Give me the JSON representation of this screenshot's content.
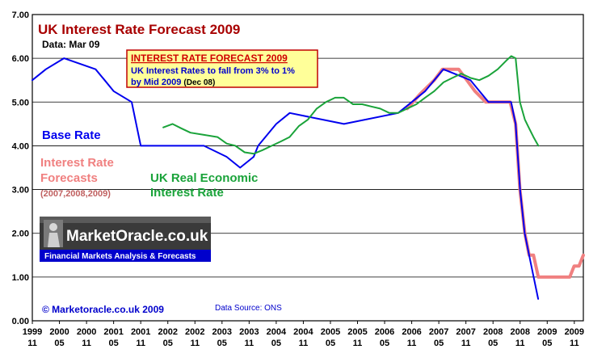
{
  "colors": {
    "title": "#a80000",
    "base_rate": "#0000ee",
    "forecast": "#f08080",
    "real_rate": "#1aa33a",
    "forecast_box_border": "#c00000",
    "forecast_box_bg": "#ffff99",
    "forecast_box_title": "#d00000",
    "forecast_box_text": "#0000cc",
    "brand_bar": "#0000cc"
  },
  "chart_data": {
    "type": "line",
    "title": "UK Interest Rate Forecast 2009",
    "subtitle": "Data: Mar 09",
    "ylim": [
      0,
      7
    ],
    "y_ticks": [
      "0.00",
      "1.00",
      "2.00",
      "3.00",
      "4.00",
      "5.00",
      "6.00",
      "7.00"
    ],
    "grid": "horizontal",
    "x_range": [
      1999.833,
      2010.0
    ],
    "x_ticks_years": [
      "1999",
      "2000",
      "2000",
      "2001",
      "2001",
      "2002",
      "2002",
      "2003",
      "2003",
      "2004",
      "2004",
      "2005",
      "2005",
      "2006",
      "2006",
      "2007",
      "2007",
      "2008",
      "2008",
      "2009",
      "2009"
    ],
    "x_ticks_months": [
      "11",
      "05",
      "11",
      "05",
      "11",
      "05",
      "11",
      "05",
      "11",
      "05",
      "11",
      "05",
      "11",
      "05",
      "11",
      "05",
      "11",
      "05",
      "11",
      "05",
      "11"
    ],
    "series": [
      {
        "name": "Base Rate",
        "label": "Base Rate",
        "x": [
          1999.833,
          2000.083,
          2000.417,
          2001.0,
          2001.167,
          2001.333,
          2001.667,
          2001.75,
          2001.833,
          2003.0,
          2003.417,
          2003.667,
          2003.917,
          2004.0,
          2004.167,
          2004.333,
          2004.583,
          2005.583,
          2006.583,
          2006.833,
          2007.083,
          2007.417,
          2007.917,
          2008.083,
          2008.25,
          2008.333,
          2008.417,
          2008.667,
          2008.75,
          2008.833,
          2008.917,
          2009.0,
          2009.083,
          2009.167
        ],
        "y": [
          5.5,
          5.75,
          6.0,
          5.75,
          5.5,
          5.25,
          5.0,
          4.5,
          4.0,
          4.0,
          3.75,
          3.5,
          3.75,
          4.0,
          4.25,
          4.5,
          4.75,
          4.5,
          4.75,
          5.0,
          5.25,
          5.75,
          5.5,
          5.25,
          5.0,
          5.0,
          5.0,
          5.0,
          4.5,
          3.0,
          2.0,
          1.5,
          1.0,
          0.5
        ]
      },
      {
        "name": "Interest Rate Forecasts",
        "label": "Interest Rate Forecasts",
        "label_note": "(2007,2008,2009)",
        "x": [
          2006.75,
          2007.0,
          2007.25,
          2007.4,
          2007.55,
          2007.7,
          2007.85,
          2008.0,
          2008.2,
          2008.35,
          2008.55,
          2008.65,
          2008.75,
          2008.83,
          2008.92,
          2009.0,
          2009.08,
          2009.17,
          2009.25,
          2009.5,
          2009.75,
          2009.83,
          2009.92,
          2010.0
        ],
        "y": [
          4.85,
          5.2,
          5.5,
          5.75,
          5.75,
          5.75,
          5.5,
          5.25,
          5.0,
          5.0,
          5.0,
          5.0,
          4.5,
          3.0,
          2.0,
          1.5,
          1.5,
          1.0,
          1.0,
          1.0,
          1.0,
          1.25,
          1.25,
          1.5
        ]
      },
      {
        "name": "UK Real Economic Interest Rate",
        "label": "UK Real Economic Interest Rate",
        "x": [
          2002.25,
          2002.42,
          2002.58,
          2002.75,
          2003.0,
          2003.25,
          2003.42,
          2003.58,
          2003.75,
          2003.92,
          2004.08,
          2004.25,
          2004.42,
          2004.58,
          2004.75,
          2004.92,
          2005.08,
          2005.25,
          2005.42,
          2005.58,
          2005.75,
          2005.92,
          2006.08,
          2006.25,
          2006.42,
          2006.58,
          2006.75,
          2006.92,
          2007.08,
          2007.25,
          2007.42,
          2007.58,
          2007.75,
          2007.92,
          2008.08,
          2008.25,
          2008.42,
          2008.58,
          2008.67,
          2008.75,
          2008.83,
          2008.92,
          2009.0,
          2009.08,
          2009.17
        ],
        "y": [
          4.42,
          4.5,
          4.4,
          4.3,
          4.25,
          4.2,
          4.05,
          4.0,
          3.85,
          3.82,
          3.9,
          4.0,
          4.1,
          4.2,
          4.45,
          4.6,
          4.85,
          5.0,
          5.1,
          5.1,
          4.95,
          4.95,
          4.9,
          4.85,
          4.75,
          4.75,
          4.85,
          4.95,
          5.1,
          5.25,
          5.45,
          5.55,
          5.65,
          5.55,
          5.5,
          5.6,
          5.75,
          5.95,
          6.05,
          6.0,
          5.0,
          4.6,
          4.4,
          4.2,
          4.0
        ]
      }
    ]
  },
  "forecast_box": {
    "title": "INTEREST RATE FORECAST 2009",
    "line1": "UK Interest Rates to fall from 3% to 1%",
    "line2": "by Mid 2009",
    "line2_suffix": "(Dec 08)"
  },
  "brand": {
    "name": "MarketOracle.co.uk",
    "tagline": "Financial Markets Analysis & Forecasts"
  },
  "footer": {
    "copyright": "© Marketoracle.co.uk 2009",
    "source": "Data Source: ONS"
  }
}
